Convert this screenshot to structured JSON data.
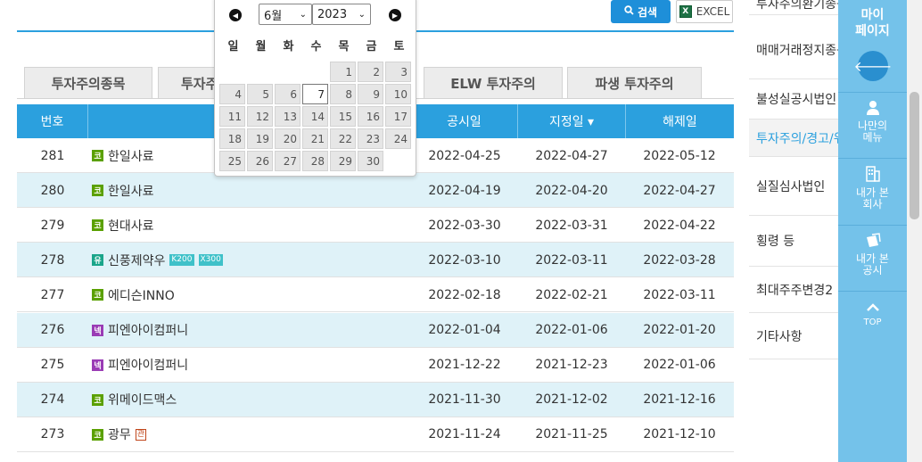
{
  "toolbar": {
    "search_label": "검색",
    "excel_label": "EXCEL"
  },
  "tabs": [
    {
      "label": "투자주의종목"
    },
    {
      "label": "투자주"
    },
    {
      "label": "ELW 투자주의"
    },
    {
      "label": "파생 투자주의"
    }
  ],
  "table": {
    "headers": {
      "no": "번호",
      "name": "",
      "announce": "공시일",
      "designate": "지정일 ▾",
      "release": "해제일"
    },
    "rows": [
      {
        "no": "281",
        "market": "코",
        "name": "한일사료",
        "tags": [],
        "announce": "2022-04-25",
        "designate": "2022-04-27",
        "release": "2022-05-12"
      },
      {
        "no": "280",
        "market": "코",
        "name": "한일사료",
        "tags": [],
        "announce": "2022-04-19",
        "designate": "2022-04-20",
        "release": "2022-04-27"
      },
      {
        "no": "279",
        "market": "코",
        "name": "현대사료",
        "tags": [],
        "announce": "2022-03-30",
        "designate": "2022-03-31",
        "release": "2022-04-22"
      },
      {
        "no": "278",
        "market": "유",
        "name": "신풍제약우",
        "tags": [
          "K200",
          "X300"
        ],
        "announce": "2022-03-10",
        "designate": "2022-03-11",
        "release": "2022-03-28"
      },
      {
        "no": "277",
        "market": "코",
        "name": "에디슨INNO",
        "tags": [],
        "announce": "2022-02-18",
        "designate": "2022-02-21",
        "release": "2022-03-11"
      },
      {
        "no": "276",
        "market": "넥",
        "name": "피엔아이컴퍼니",
        "tags": [],
        "announce": "2022-01-04",
        "designate": "2022-01-06",
        "release": "2022-01-20"
      },
      {
        "no": "275",
        "market": "넥",
        "name": "피엔아이컴퍼니",
        "tags": [],
        "announce": "2021-12-22",
        "designate": "2021-12-23",
        "release": "2022-01-06"
      },
      {
        "no": "274",
        "market": "코",
        "name": "위메이드맥스",
        "tags": [],
        "announce": "2021-11-30",
        "designate": "2021-12-02",
        "release": "2021-12-16"
      },
      {
        "no": "273",
        "market": "코",
        "name": "광무",
        "tags": [],
        "obstacle": "관",
        "announce": "2021-11-24",
        "designate": "2021-11-25",
        "release": "2021-12-10"
      }
    ]
  },
  "calendar": {
    "month": "6월",
    "year": "2023",
    "weekdays": [
      "일",
      "월",
      "화",
      "수",
      "목",
      "금",
      "토"
    ],
    "today": 7,
    "days": [
      "1",
      "2",
      "3",
      "4",
      "5",
      "6",
      "7",
      "8",
      "9",
      "10",
      "11",
      "12",
      "13",
      "14",
      "15",
      "16",
      "17",
      "18",
      "19",
      "20",
      "21",
      "22",
      "23",
      "24",
      "25",
      "26",
      "27",
      "28",
      "29",
      "30"
    ]
  },
  "right_menu": [
    {
      "label": "투자주의환기종목"
    },
    {
      "label": "매매거래정지종목"
    },
    {
      "label": "불성실공시법인"
    },
    {
      "label": "투자주의/경고/위험"
    },
    {
      "label": "실질심사법인"
    },
    {
      "label": "횡령 등"
    },
    {
      "label": "최대주주변경2"
    },
    {
      "label": "기타사항"
    }
  ],
  "quick_panel": {
    "title": "마이\n페이지",
    "items": [
      {
        "label": "나만의\n메뉴"
      },
      {
        "label": "내가 본\n회사"
      },
      {
        "label": "내가 본\n공시"
      },
      {
        "label": "TOP"
      }
    ]
  },
  "colors": {
    "accent": "#2ba0de",
    "row_alt": "#dff2f8",
    "panel": "#74c2ea"
  }
}
